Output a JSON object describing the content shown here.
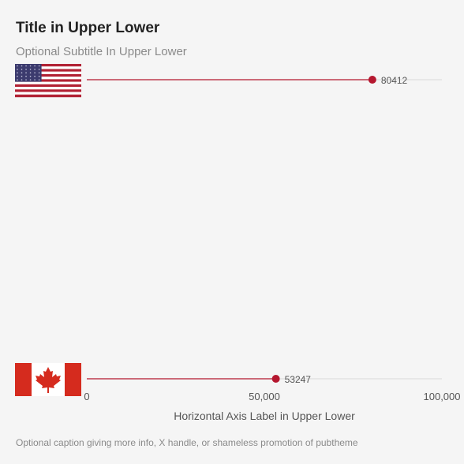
{
  "header": {
    "title": "Title in Upper Lower",
    "subtitle": "Optional Subtitle In Upper Lower"
  },
  "caption": "Optional caption giving more info, X handle, or shameless promotion of pubtheme",
  "colors": {
    "accent": "#b5172f",
    "track": "#d9d9d9",
    "flag_red": "#d52b1e",
    "flag_blue": "#3c3b6e",
    "us_red": "#b22234"
  },
  "chart_data": {
    "type": "lollipop",
    "xlabel": "Horizontal Axis Label in Upper Lower",
    "xlim": [
      0,
      100000
    ],
    "xticks": [
      0,
      50000,
      100000
    ],
    "xtick_labels": [
      "0",
      "50,000",
      "100,000"
    ],
    "categories": [
      {
        "name": "United States",
        "flag": "us-flag",
        "value": 80412,
        "label": "80412"
      },
      {
        "name": "Canada",
        "flag": "canada-flag",
        "value": 53247,
        "label": "53247"
      }
    ]
  }
}
